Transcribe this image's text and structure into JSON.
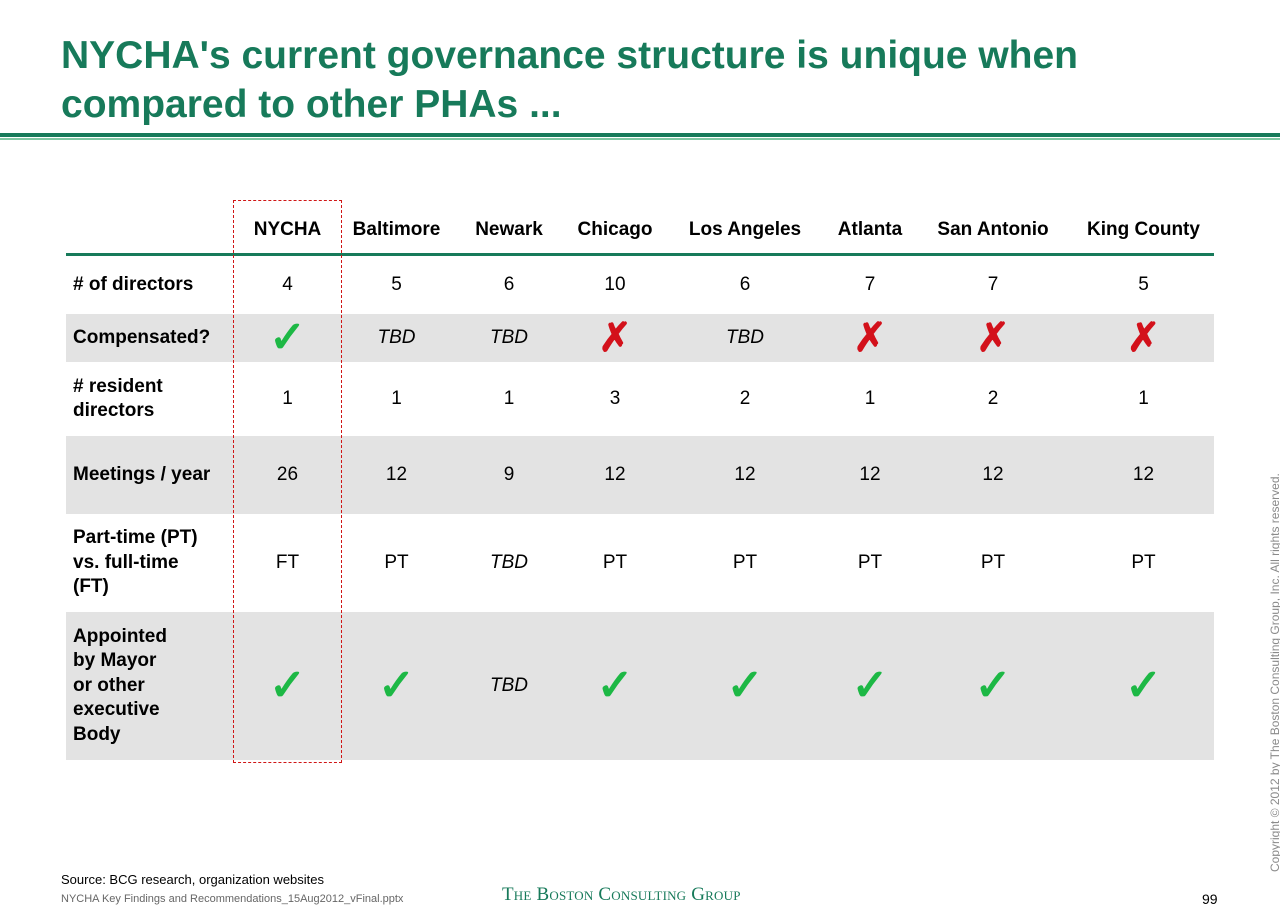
{
  "title": "NYCHA's current governance structure is unique when compared to other PHAs ...",
  "columns": [
    "NYCHA",
    "Baltimore",
    "Newark",
    "Chicago",
    "Los Angeles",
    "Atlanta",
    "San Antonio",
    "King County"
  ],
  "rows": [
    {
      "label": "# of directors",
      "values": [
        "4",
        "5",
        "6",
        "10",
        "6",
        "7",
        "7",
        "5"
      ],
      "shaded": false,
      "height": 58
    },
    {
      "label": "Compensated?",
      "values": [
        "check",
        "TBD",
        "TBD",
        "cross",
        "TBD",
        "cross",
        "cross",
        "cross"
      ],
      "shaded": true,
      "height": 48
    },
    {
      "label": "# resident directors",
      "values": [
        "1",
        "1",
        "1",
        "3",
        "2",
        "1",
        "2",
        "1"
      ],
      "shaded": false,
      "height": 74
    },
    {
      "label": "Meetings / year",
      "values": [
        "26",
        "12",
        "9",
        "12",
        "12",
        "12",
        "12",
        "12"
      ],
      "shaded": true,
      "height": 78
    },
    {
      "label": "Part-time (PT) vs. full-time (FT)",
      "values": [
        "FT",
        "PT",
        "TBD",
        "PT",
        "PT",
        "PT",
        "PT",
        "PT"
      ],
      "shaded": false,
      "height": 98
    },
    {
      "label": "Appointed by Mayor or other executive Body",
      "values": [
        "check",
        "check",
        "TBD",
        "check",
        "check",
        "check",
        "check",
        "check"
      ],
      "shaded": true,
      "height": 148
    }
  ],
  "source": "Source: BCG research, organization websites",
  "filename": "NYCHA Key Findings and Recommendations_15Aug2012_vFinal.pptx",
  "logo_text": "The Boston Consulting Group",
  "page_number": "99",
  "copyright": "Copyright © 2012 by The Boston Consulting Group, Inc. All rights reserved.",
  "colors": {
    "title": "#177a5a",
    "check": "#1db845",
    "cross": "#d3111b",
    "highlight": "#d01515"
  },
  "icons": {
    "check": "check-mark-icon",
    "cross": "cross-mark-icon"
  }
}
